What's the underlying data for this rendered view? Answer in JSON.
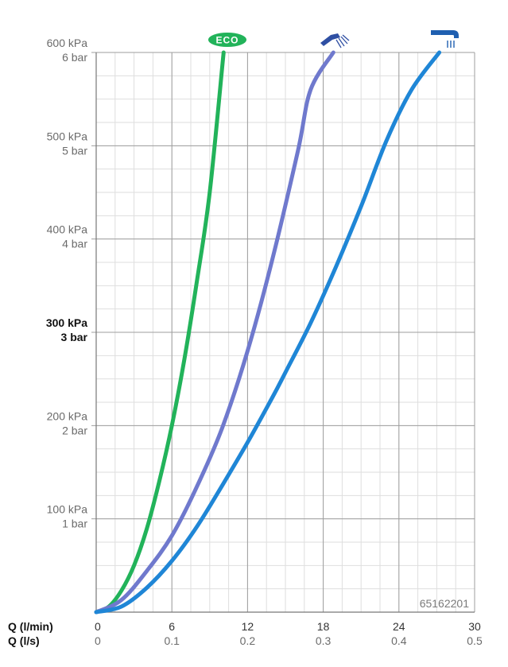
{
  "chart_data": {
    "type": "line",
    "x_axes": [
      {
        "label": "Q (l/min)",
        "ticks": [
          "0",
          "6",
          "12",
          "18",
          "24",
          "30"
        ],
        "values": [
          0,
          6,
          12,
          18,
          24,
          30
        ]
      },
      {
        "label": "Q (l/s)",
        "ticks": [
          "0",
          "0.1",
          "0.2",
          "0.3",
          "0.4",
          "0.5"
        ],
        "values": [
          0,
          0.1,
          0.2,
          0.3,
          0.4,
          0.5
        ]
      }
    ],
    "xlim": [
      0,
      30
    ],
    "ylim": [
      0,
      600
    ],
    "y_unit": "kPa",
    "y_ticks": [
      {
        "value": 100,
        "kpa": "100 kPa",
        "bar": "1 bar",
        "bold": false
      },
      {
        "value": 200,
        "kpa": "200 kPa",
        "bar": "2 bar",
        "bold": false
      },
      {
        "value": 300,
        "kpa": "300 kPa",
        "bar": "3 bar",
        "bold": true
      },
      {
        "value": 400,
        "kpa": "400 kPa",
        "bar": "4 bar",
        "bold": false
      },
      {
        "value": 500,
        "kpa": "500 kPa",
        "bar": "5 bar",
        "bold": false
      },
      {
        "value": 600,
        "kpa": "600 kPa",
        "bar": "6 bar",
        "bold": false
      }
    ],
    "grid": true,
    "series": [
      {
        "name": "ECO",
        "icon": "eco-badge-icon",
        "color": "#22b35a",
        "x": [
          0,
          1,
          2,
          3,
          4,
          5,
          6,
          7,
          8,
          9,
          10.1
        ],
        "y": [
          0,
          6,
          23,
          50,
          89,
          140,
          200,
          272,
          356,
          450,
          600
        ]
      },
      {
        "name": "",
        "icon": "shower-spray-icon",
        "color": "#6f79cd",
        "x": [
          0,
          2,
          4,
          6,
          8,
          10,
          12,
          14,
          16,
          17,
          18.8
        ],
        "y": [
          0,
          13,
          44,
          82,
          135,
          198,
          280,
          380,
          495,
          560,
          600
        ]
      },
      {
        "name": "",
        "icon": "bath-spout-icon",
        "color": "#1f86d6",
        "x": [
          0,
          2,
          4,
          6,
          8,
          10,
          12,
          14,
          15,
          17,
          19,
          21,
          23,
          25,
          27.2
        ],
        "y": [
          0,
          6,
          26,
          55,
          92,
          136,
          182,
          231,
          257,
          310,
          370,
          435,
          505,
          560,
          600
        ]
      }
    ],
    "annotation": "65162201"
  },
  "colors": {
    "grid_major": "#9e9e9e",
    "grid_minor": "#dedede",
    "axis": "#777777"
  }
}
